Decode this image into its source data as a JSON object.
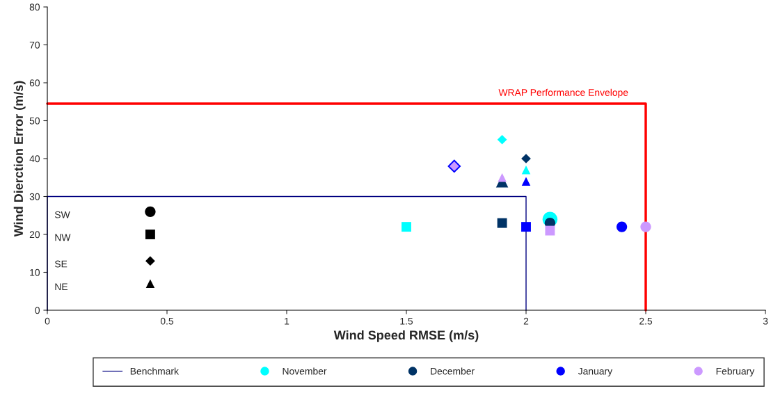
{
  "chart_data": {
    "type": "scatter",
    "xlabel": "Wind Speed RMSE (m/s)",
    "ylabel": "Wind Dierction Error (m/s)",
    "xlim": [
      0,
      3
    ],
    "xticks": [
      0,
      0.5,
      1,
      1.5,
      2,
      2.5,
      3
    ],
    "ylim": [
      0,
      80
    ],
    "yticks": [
      0,
      10,
      20,
      30,
      40,
      50,
      60,
      70,
      80
    ],
    "grid": false,
    "legend": "bottom",
    "annotations": [
      "WRAP Performance Envelope",
      "SW",
      "NW",
      "SE",
      "NE"
    ],
    "series": [
      {
        "type": "line",
        "name": "Benchmark",
        "color": "#000080",
        "x": [
          0,
          0,
          2,
          2
        ],
        "values": [
          0,
          30,
          30,
          0
        ],
        "marker": "none",
        "line_style": "solid"
      },
      {
        "type": "line",
        "color": "#ff0000",
        "x": [
          0,
          2.5,
          2.5
        ],
        "values": [
          54.5,
          54.5,
          0
        ],
        "marker": "none",
        "line_style": "solid"
      },
      {
        "color": "#000000",
        "marker": "circle",
        "x": [
          0.43
        ],
        "values": [
          26
        ]
      },
      {
        "color": "#000000",
        "marker": "square",
        "x": [
          0.43
        ],
        "values": [
          20
        ]
      },
      {
        "color": "#000000",
        "marker": "diamond",
        "x": [
          0.43
        ],
        "values": [
          13
        ]
      },
      {
        "color": "#000000",
        "marker": "triangle",
        "x": [
          0.43
        ],
        "values": [
          7
        ]
      },
      {
        "name": "November",
        "color": "#00ffff",
        "marker": "circle",
        "x": [
          2.1
        ],
        "values": [
          24
        ]
      },
      {
        "color": "#00ffff",
        "marker": "square",
        "x": [
          1.5
        ],
        "values": [
          22
        ]
      },
      {
        "color": "#00ffff",
        "marker": "diamond",
        "x": [
          1.9
        ],
        "values": [
          45
        ]
      },
      {
        "color": "#00ffff",
        "marker": "triangle",
        "x": [
          2.0
        ],
        "values": [
          37
        ]
      },
      {
        "name": "December",
        "color": "#003366",
        "marker": "circle",
        "x": [
          2.1
        ],
        "values": [
          23
        ]
      },
      {
        "color": "#003366",
        "marker": "square",
        "x": [
          1.9
        ],
        "values": [
          23
        ]
      },
      {
        "color": "#003366",
        "marker": "diamond",
        "x": [
          2.0
        ],
        "values": [
          40
        ]
      },
      {
        "color": "#003366",
        "marker": "triangle",
        "x": [
          1.9
        ],
        "values": [
          34
        ]
      },
      {
        "name": "January",
        "color": "#0000ff",
        "marker": "circle",
        "x": [
          2.4
        ],
        "values": [
          22
        ]
      },
      {
        "color": "#0000ff",
        "marker": "square",
        "x": [
          2.0
        ],
        "values": [
          22
        ]
      },
      {
        "color": "#0000ff",
        "marker": "diamond",
        "x": [
          1.7
        ],
        "values": [
          38
        ]
      },
      {
        "color": "#0000ff",
        "marker": "triangle",
        "x": [
          2.0
        ],
        "values": [
          34
        ]
      },
      {
        "name": "February",
        "color": "#cc99ff",
        "marker": "circle",
        "x": [
          2.5
        ],
        "values": [
          22
        ]
      },
      {
        "color": "#cc99ff",
        "marker": "square",
        "x": [
          2.1
        ],
        "values": [
          21
        ]
      },
      {
        "color": "#cc99ff",
        "marker": "diamond",
        "x": [
          1.7
        ],
        "values": [
          38
        ]
      },
      {
        "color": "#cc99ff",
        "marker": "triangle",
        "x": [
          1.9
        ],
        "values": [
          35
        ]
      }
    ]
  }
}
